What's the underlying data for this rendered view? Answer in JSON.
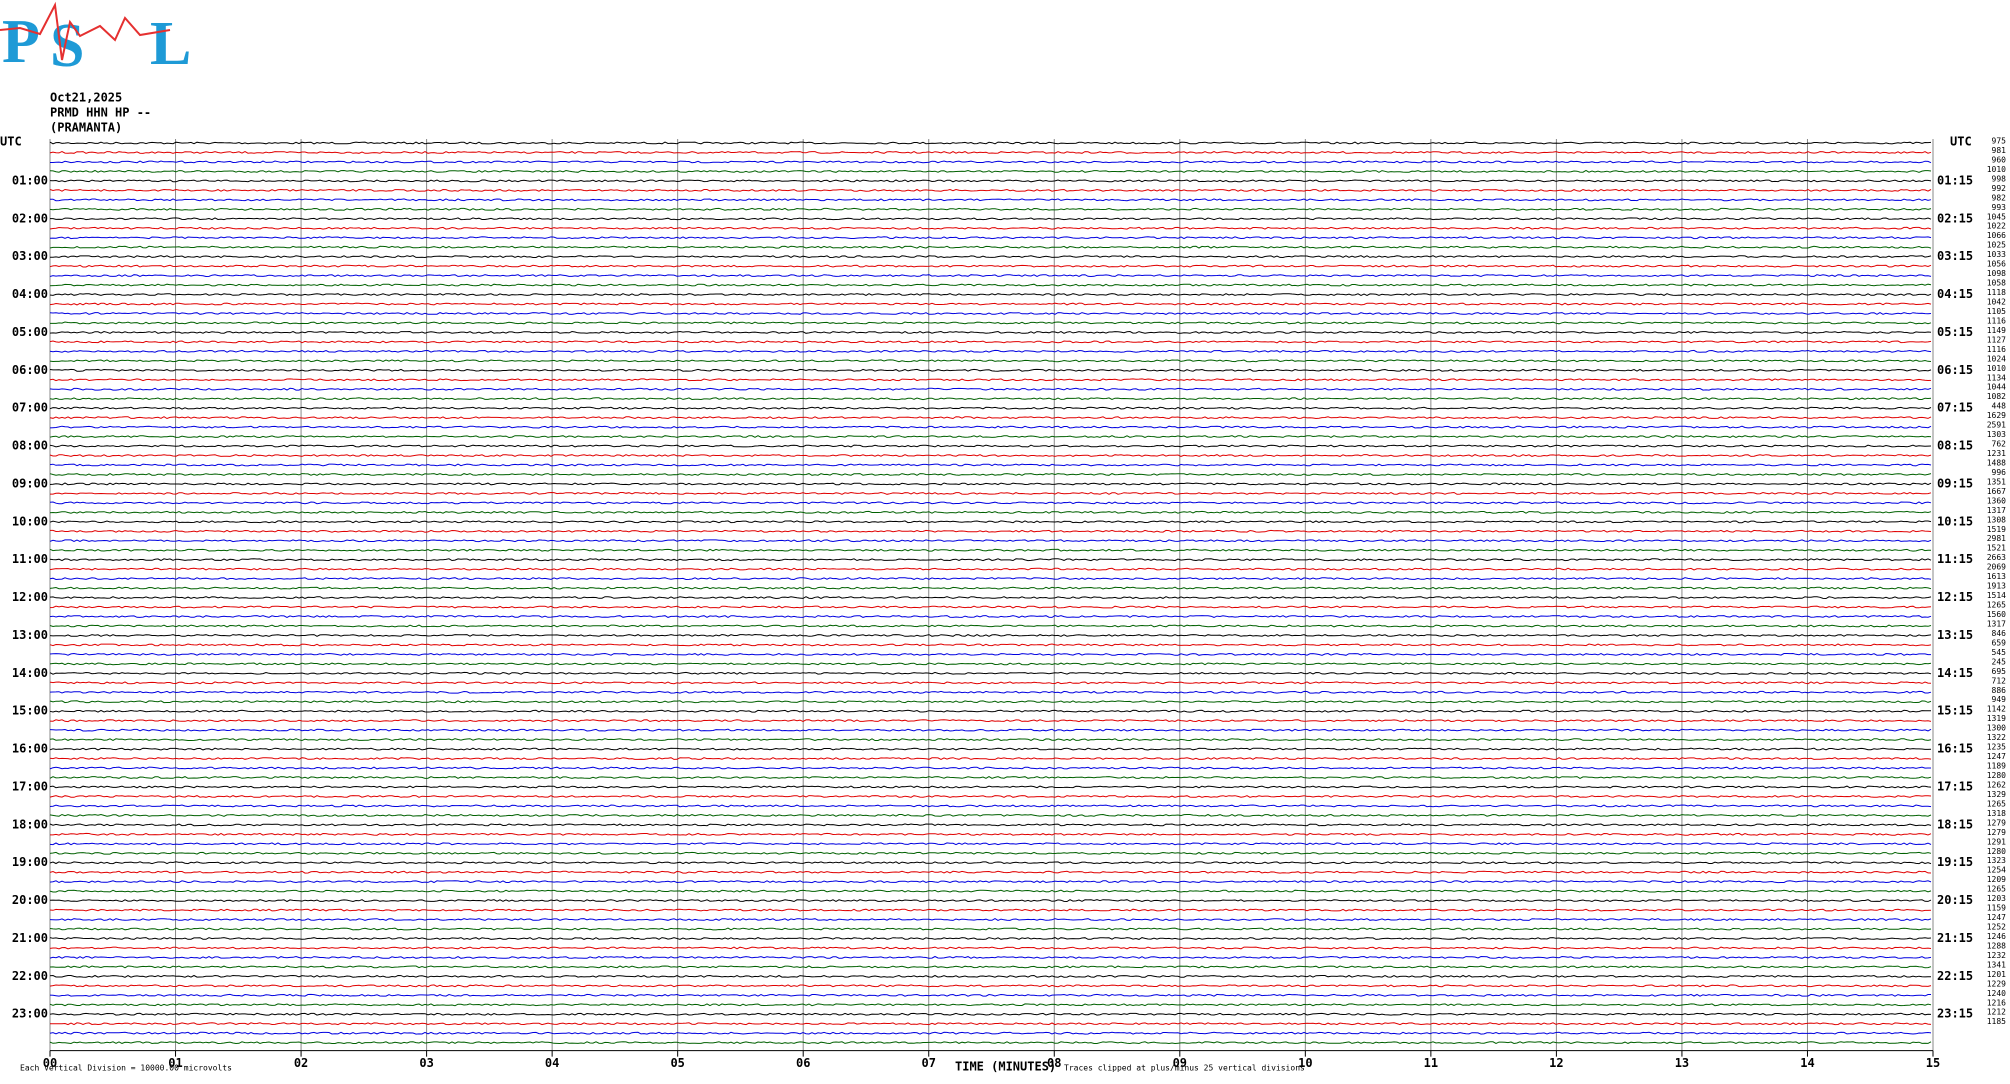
{
  "logo": {
    "letters": [
      "P",
      "S",
      "L"
    ]
  },
  "header": {
    "date": "Oct21,2025",
    "station": "PRMD HHN HP --",
    "name": "(PRAMANTA)"
  },
  "left_axis": {
    "title": "UTC",
    "labels": [
      "01:00",
      "02:00",
      "03:00",
      "04:00",
      "05:00",
      "06:00",
      "07:00",
      "08:00",
      "09:00",
      "10:00",
      "11:00",
      "12:00",
      "13:00",
      "14:00",
      "15:00",
      "16:00",
      "17:00",
      "18:00",
      "19:00",
      "20:00",
      "21:00",
      "22:00",
      "23:00"
    ]
  },
  "right_axis": {
    "title": "UTC",
    "labels": [
      "01:15",
      "02:15",
      "03:15",
      "04:15",
      "05:15",
      "06:15",
      "07:15",
      "08:15",
      "09:15",
      "10:15",
      "11:15",
      "12:15",
      "13:15",
      "14:15",
      "15:15",
      "16:15",
      "17:15",
      "18:15",
      "19:15",
      "20:15",
      "21:15",
      "22:15",
      "23:15"
    ]
  },
  "trace_values": [
    975,
    981,
    960,
    1010,
    998,
    992,
    982,
    993,
    1045,
    1022,
    1066,
    1025,
    1033,
    1056,
    1098,
    1058,
    1118,
    1042,
    1105,
    1116,
    1149,
    1127,
    1116,
    1024,
    1010,
    1134,
    1044,
    1082,
    448,
    1629,
    2591,
    1303,
    762,
    1231,
    1488,
    996,
    1351,
    1667,
    1360,
    1317,
    1308,
    1519,
    2981,
    1521,
    2663,
    2069,
    1613,
    1913,
    1514,
    1265,
    1560,
    1317,
    846,
    659,
    545,
    245,
    695,
    712,
    886,
    949,
    1142,
    1319,
    1300,
    1322,
    1235,
    1247,
    1189,
    1280,
    1262,
    1329,
    1265,
    1318,
    1279,
    1279,
    1291,
    1280,
    1323,
    1254,
    1209,
    1265,
    1203,
    1159,
    1247,
    1252,
    1246,
    1288,
    1232,
    1341,
    1201,
    1229,
    1240,
    1216,
    1212,
    1185
  ],
  "x_axis": {
    "ticks": [
      "00",
      "01",
      "02",
      "03",
      "04",
      "05",
      "06",
      "07",
      "08",
      "09",
      "10",
      "11",
      "12",
      "13",
      "14",
      "15"
    ],
    "title": "TIME (MINUTES)",
    "note": "Traces clipped at plus/minus 25 vertical divisions"
  },
  "footer": "Each Vertical Division = 10000.00 microvolts"
}
